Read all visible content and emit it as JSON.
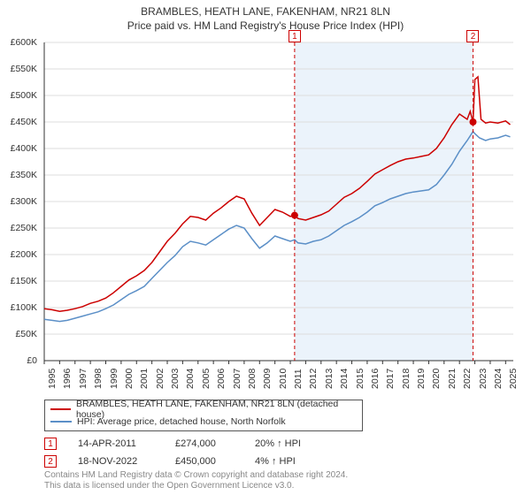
{
  "titles": {
    "line1": "BRAMBLES, HEATH LANE, FAKENHAM, NR21 8LN",
    "line2": "Price paid vs. HM Land Registry's House Price Index (HPI)"
  },
  "chart": {
    "type": "line",
    "background_color": "#ffffff",
    "grid_color": "#dddddd",
    "band_fill": "#dbeaf7",
    "band_opacity": 0.55,
    "axis_color": "#333333",
    "y": {
      "min": 0,
      "max": 600000,
      "tick_step": 50000,
      "ticks": [
        "£0",
        "£50K",
        "£100K",
        "£150K",
        "£200K",
        "£250K",
        "£300K",
        "£350K",
        "£400K",
        "£450K",
        "£500K",
        "£550K",
        "£600K"
      ],
      "label_fontsize": 10.5
    },
    "x": {
      "min": 1995,
      "max": 2025.5,
      "years": [
        1995,
        1996,
        1997,
        1998,
        1999,
        2000,
        2001,
        2002,
        2003,
        2004,
        2005,
        2006,
        2007,
        2008,
        2009,
        2010,
        2011,
        2012,
        2013,
        2014,
        2015,
        2016,
        2017,
        2018,
        2019,
        2020,
        2021,
        2022,
        2023,
        2024,
        2025
      ],
      "label_fontsize": 10.5
    },
    "series": [
      {
        "name": "BRAMBLES, HEATH LANE, FAKENHAM, NR21 8LN (detached house)",
        "color": "#cc0000",
        "line_width": 1.5,
        "points": [
          [
            1995.0,
            98000
          ],
          [
            1995.5,
            96000
          ],
          [
            1996.0,
            93000
          ],
          [
            1996.5,
            95000
          ],
          [
            1997.0,
            98000
          ],
          [
            1997.5,
            102000
          ],
          [
            1998.0,
            108000
          ],
          [
            1998.5,
            112000
          ],
          [
            1999.0,
            118000
          ],
          [
            1999.5,
            128000
          ],
          [
            2000.0,
            140000
          ],
          [
            2000.5,
            152000
          ],
          [
            2001.0,
            160000
          ],
          [
            2001.5,
            170000
          ],
          [
            2002.0,
            185000
          ],
          [
            2002.5,
            205000
          ],
          [
            2003.0,
            225000
          ],
          [
            2003.5,
            240000
          ],
          [
            2004.0,
            258000
          ],
          [
            2004.5,
            272000
          ],
          [
            2005.0,
            270000
          ],
          [
            2005.5,
            265000
          ],
          [
            2006.0,
            278000
          ],
          [
            2006.5,
            288000
          ],
          [
            2007.0,
            300000
          ],
          [
            2007.5,
            310000
          ],
          [
            2008.0,
            305000
          ],
          [
            2008.5,
            278000
          ],
          [
            2009.0,
            255000
          ],
          [
            2009.5,
            270000
          ],
          [
            2010.0,
            285000
          ],
          [
            2010.5,
            280000
          ],
          [
            2011.0,
            272000
          ],
          [
            2011.28,
            274000
          ],
          [
            2011.5,
            268000
          ],
          [
            2012.0,
            265000
          ],
          [
            2012.5,
            270000
          ],
          [
            2013.0,
            275000
          ],
          [
            2013.5,
            282000
          ],
          [
            2014.0,
            295000
          ],
          [
            2014.5,
            308000
          ],
          [
            2015.0,
            315000
          ],
          [
            2015.5,
            325000
          ],
          [
            2016.0,
            338000
          ],
          [
            2016.5,
            352000
          ],
          [
            2017.0,
            360000
          ],
          [
            2017.5,
            368000
          ],
          [
            2018.0,
            375000
          ],
          [
            2018.5,
            380000
          ],
          [
            2019.0,
            382000
          ],
          [
            2019.5,
            385000
          ],
          [
            2020.0,
            388000
          ],
          [
            2020.5,
            400000
          ],
          [
            2021.0,
            420000
          ],
          [
            2021.5,
            445000
          ],
          [
            2022.0,
            465000
          ],
          [
            2022.5,
            455000
          ],
          [
            2022.7,
            470000
          ],
          [
            2022.88,
            450000
          ],
          [
            2023.0,
            530000
          ],
          [
            2023.2,
            535000
          ],
          [
            2023.4,
            455000
          ],
          [
            2023.7,
            448000
          ],
          [
            2024.0,
            450000
          ],
          [
            2024.5,
            448000
          ],
          [
            2025.0,
            452000
          ],
          [
            2025.3,
            445000
          ]
        ]
      },
      {
        "name": "HPI: Average price, detached house, North Norfolk",
        "color": "#5b8fc7",
        "line_width": 1.5,
        "points": [
          [
            1995.0,
            78000
          ],
          [
            1995.5,
            76000
          ],
          [
            1996.0,
            74000
          ],
          [
            1996.5,
            76000
          ],
          [
            1997.0,
            80000
          ],
          [
            1997.5,
            84000
          ],
          [
            1998.0,
            88000
          ],
          [
            1998.5,
            92000
          ],
          [
            1999.0,
            98000
          ],
          [
            1999.5,
            105000
          ],
          [
            2000.0,
            115000
          ],
          [
            2000.5,
            125000
          ],
          [
            2001.0,
            132000
          ],
          [
            2001.5,
            140000
          ],
          [
            2002.0,
            155000
          ],
          [
            2002.5,
            170000
          ],
          [
            2003.0,
            185000
          ],
          [
            2003.5,
            198000
          ],
          [
            2004.0,
            215000
          ],
          [
            2004.5,
            225000
          ],
          [
            2005.0,
            222000
          ],
          [
            2005.5,
            218000
          ],
          [
            2006.0,
            228000
          ],
          [
            2006.5,
            238000
          ],
          [
            2007.0,
            248000
          ],
          [
            2007.5,
            255000
          ],
          [
            2008.0,
            250000
          ],
          [
            2008.5,
            230000
          ],
          [
            2009.0,
            212000
          ],
          [
            2009.5,
            222000
          ],
          [
            2010.0,
            235000
          ],
          [
            2010.5,
            230000
          ],
          [
            2011.0,
            225000
          ],
          [
            2011.28,
            228000
          ],
          [
            2011.5,
            222000
          ],
          [
            2012.0,
            220000
          ],
          [
            2012.5,
            225000
          ],
          [
            2013.0,
            228000
          ],
          [
            2013.5,
            235000
          ],
          [
            2014.0,
            245000
          ],
          [
            2014.5,
            255000
          ],
          [
            2015.0,
            262000
          ],
          [
            2015.5,
            270000
          ],
          [
            2016.0,
            280000
          ],
          [
            2016.5,
            292000
          ],
          [
            2017.0,
            298000
          ],
          [
            2017.5,
            305000
          ],
          [
            2018.0,
            310000
          ],
          [
            2018.5,
            315000
          ],
          [
            2019.0,
            318000
          ],
          [
            2019.5,
            320000
          ],
          [
            2020.0,
            322000
          ],
          [
            2020.5,
            332000
          ],
          [
            2021.0,
            350000
          ],
          [
            2021.5,
            370000
          ],
          [
            2022.0,
            395000
          ],
          [
            2022.5,
            415000
          ],
          [
            2022.88,
            432000
          ],
          [
            2023.0,
            428000
          ],
          [
            2023.3,
            420000
          ],
          [
            2023.7,
            415000
          ],
          [
            2024.0,
            418000
          ],
          [
            2024.5,
            420000
          ],
          [
            2025.0,
            425000
          ],
          [
            2025.3,
            422000
          ]
        ]
      }
    ],
    "sale_markers": [
      {
        "id": "1",
        "x": 2011.28,
        "y": 274000,
        "dot_color": "#cc0000",
        "dot_radius": 4
      },
      {
        "id": "2",
        "x": 2022.88,
        "y": 450000,
        "dot_color": "#cc0000",
        "dot_radius": 4
      }
    ],
    "marker_line_color": "#cc0000",
    "marker_line_dash": "4,3"
  },
  "legend": {
    "items": [
      {
        "color": "#cc0000",
        "label": "BRAMBLES, HEATH LANE, FAKENHAM, NR21 8LN (detached house)"
      },
      {
        "color": "#5b8fc7",
        "label": "HPI: Average price, detached house, North Norfolk"
      }
    ]
  },
  "marker_table": [
    {
      "id": "1",
      "date": "14-APR-2011",
      "price": "£274,000",
      "pct": "20% ↑ HPI"
    },
    {
      "id": "2",
      "date": "18-NOV-2022",
      "price": "£450,000",
      "pct": "4% ↑ HPI"
    }
  ],
  "footer": {
    "line1": "Contains HM Land Registry data © Crown copyright and database right 2024.",
    "line2": "This data is licensed under the Open Government Licence v3.0."
  }
}
